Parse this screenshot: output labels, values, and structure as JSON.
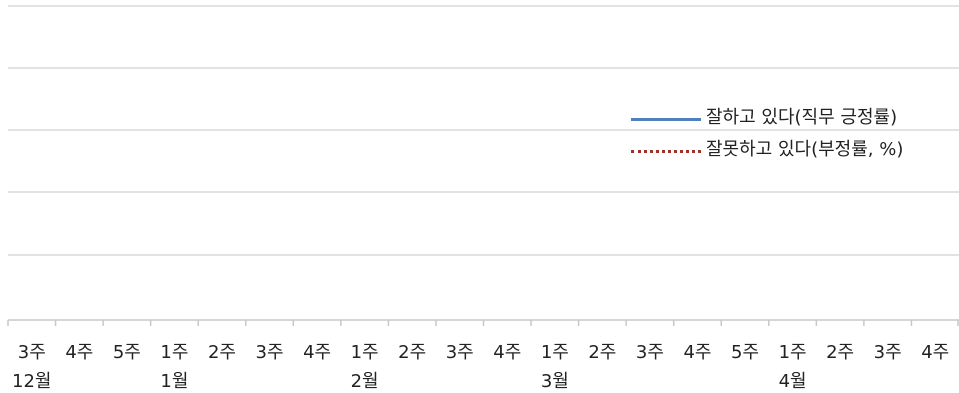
{
  "chart_data": {
    "type": "line",
    "title": "",
    "xlabel": "",
    "ylabel": "",
    "grid": true,
    "legend_position": "right",
    "week_labels": [
      "3주",
      "4주",
      "5주",
      "1주",
      "2주",
      "3주",
      "4주",
      "1주",
      "2주",
      "3주",
      "4주",
      "1주",
      "2주",
      "3주",
      "4주",
      "5주",
      "1주",
      "2주",
      "3주",
      "4주"
    ],
    "month_labels": [
      {
        "label": "12월",
        "start_index": 0
      },
      {
        "label": "1월",
        "start_index": 3
      },
      {
        "label": "2월",
        "start_index": 7
      },
      {
        "label": "3월",
        "start_index": 11
      },
      {
        "label": "4월",
        "start_index": 16
      }
    ],
    "series": [
      {
        "name": "잘하고 있다(직무 긍정률)",
        "color": "#4f7fbd",
        "style": "solid",
        "values": []
      },
      {
        "name": "잘못하고 있다(부정률, %)",
        "color": "#a0302a",
        "style": "dotted",
        "values": []
      }
    ]
  }
}
